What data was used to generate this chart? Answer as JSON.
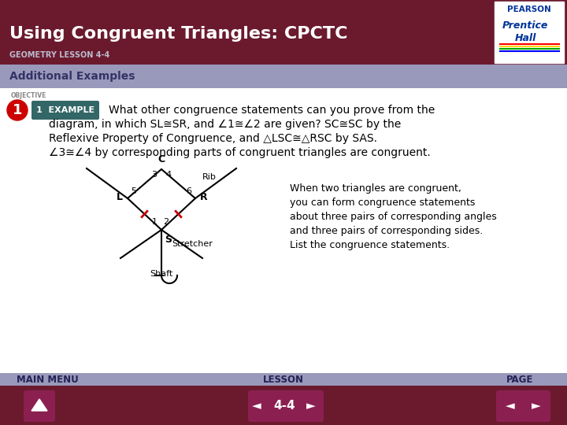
{
  "title": "Using Congruent Triangles: CPCTC",
  "subtitle": "GEOMETRY LESSON 4-4",
  "section_label": "Additional Examples",
  "header_bg": "#6B1A2E",
  "section_bg": "#9999BB",
  "footer_bg": "#6B1A2E",
  "body_bg": "#FFFFFF",
  "objective_label": "OBJECTIVE",
  "example_badge": "1  EXAMPLE",
  "main_text_line1": "What other congruence statements can you prove from the",
  "main_text_line2": "diagram, in which SL≅SR, and ∠1≅∠2 are given? SC≅SC by the",
  "main_text_line3": "Reflexive Property of Congruence, and △LSC≅△RSC by SAS.",
  "main_text_line4": "∠3≅∠4 by corresponding parts of congruent triangles are congruent.",
  "side_text_line1": "When two triangles are congruent,",
  "side_text_line2": "you can form congruence statements",
  "side_text_line3": "about three pairs of corresponding angles",
  "side_text_line4": "and three pairs of corresponding sides.",
  "side_text_line5": "List the congruence statements.",
  "footer_labels": [
    "MAIN MENU",
    "LESSON",
    "PAGE"
  ],
  "footer_page": "4-4",
  "pearson_text": [
    "PEARSON",
    "Prentice",
    "Hall"
  ],
  "pearson_colors": [
    "#FF0000",
    "#FFD700",
    "#00AA00",
    "#0000FF"
  ]
}
